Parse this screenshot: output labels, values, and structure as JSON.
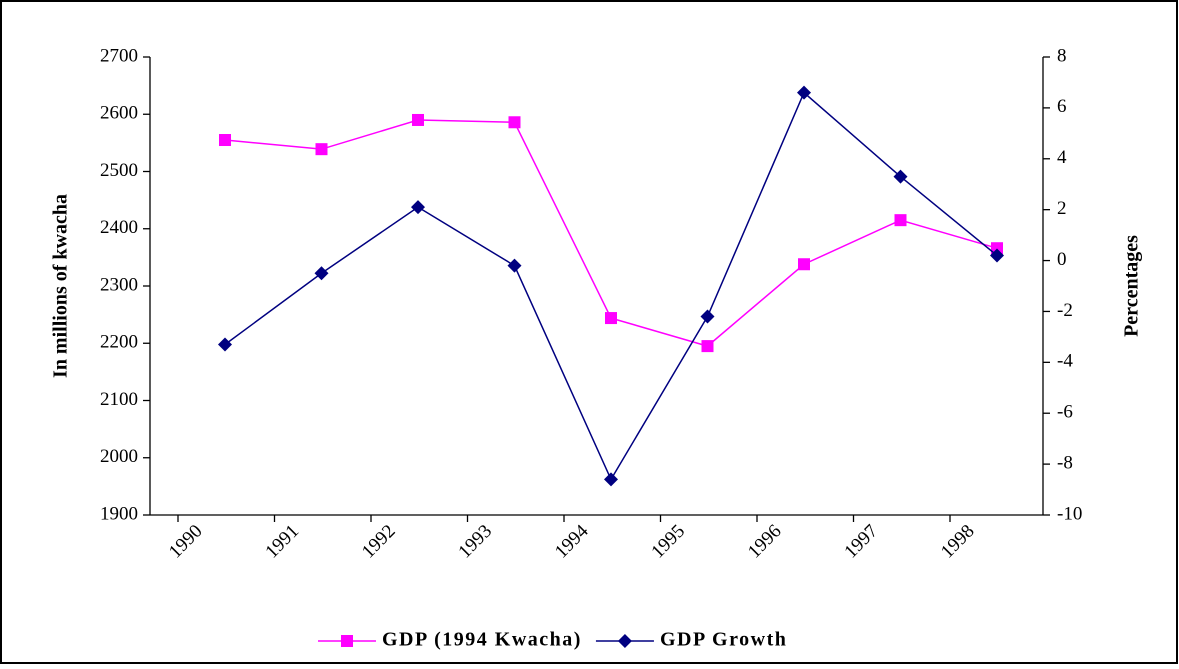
{
  "chart_data": {
    "type": "line",
    "categories": [
      "1990",
      "1991",
      "1992",
      "1993",
      "1994",
      "1995",
      "1996",
      "1997",
      "1998"
    ],
    "ylabel": "In millions of kwacha",
    "y2label": "Percentages",
    "ylim": [
      1900,
      2700
    ],
    "yticks": [
      1900,
      2000,
      2100,
      2200,
      2300,
      2400,
      2500,
      2600,
      2700
    ],
    "y2lim": [
      -10,
      8
    ],
    "y2ticks": [
      -10,
      -8,
      -6,
      -4,
      -2,
      0,
      2,
      4,
      6,
      8
    ],
    "series": [
      {
        "name": "GDP (1994 Kwacha)",
        "color": "#ff00ff",
        "marker": "square",
        "values": [
          2555,
          2539,
          2590,
          2586,
          2244,
          2195,
          2338,
          2415,
          2366
        ]
      },
      {
        "name": "GDP Growth",
        "color": "#000080",
        "marker": "diamond",
        "axis": "y2",
        "values": [
          -3.3,
          -0.5,
          2.1,
          -0.2,
          -8.6,
          -2.2,
          6.6,
          3.3,
          0.2
        ]
      }
    ],
    "legend": "bottom"
  }
}
